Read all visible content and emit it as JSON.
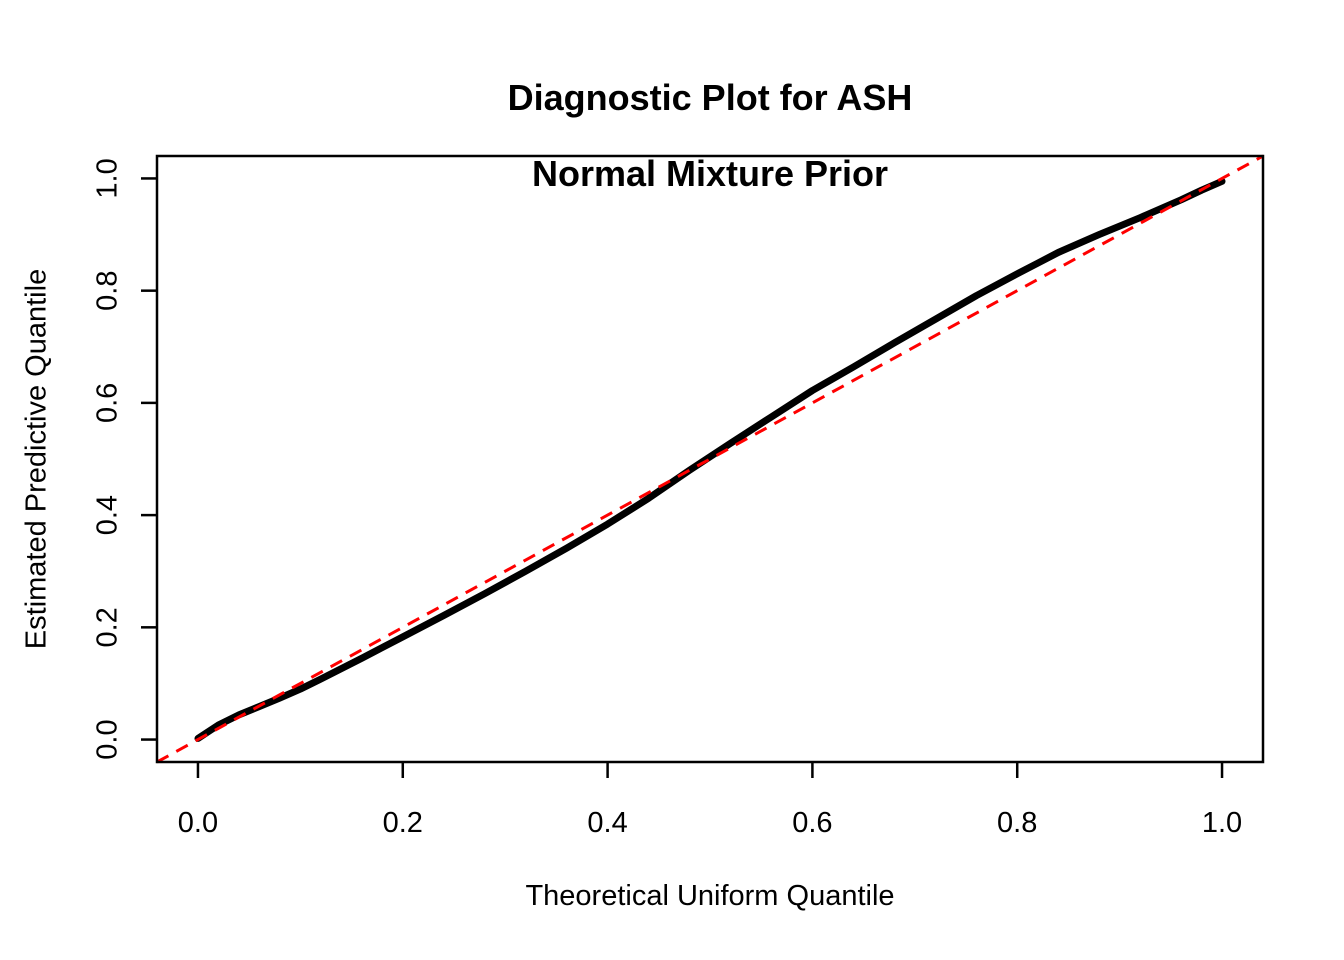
{
  "figure": {
    "title_line1": "Diagnostic Plot for ASH",
    "title_line2": "Normal Mixture Prior",
    "background_color": "#ffffff"
  },
  "chart_data": {
    "type": "line",
    "title": "Diagnostic Plot for ASH\nNormal Mixture Prior",
    "xlabel": "Theoretical Uniform Quantile",
    "ylabel": "Estimated Predictive Quantile",
    "xlim": [
      -0.04,
      1.04
    ],
    "ylim": [
      -0.04,
      1.04
    ],
    "grid": false,
    "legend": "none",
    "x_ticks": [
      0.0,
      0.2,
      0.4,
      0.6,
      0.8,
      1.0
    ],
    "x_tick_labels": [
      "0.0",
      "0.2",
      "0.4",
      "0.6",
      "0.8",
      "1.0"
    ],
    "y_ticks": [
      0.0,
      0.2,
      0.4,
      0.6,
      0.8,
      1.0
    ],
    "y_tick_labels": [
      "0.0",
      "0.2",
      "0.4",
      "0.6",
      "0.8",
      "1.0"
    ],
    "series": [
      {
        "name": "estimated-predictive-quantile-curve",
        "color": "#000000",
        "style": "solid",
        "stroke_width": 7,
        "points": [
          [
            0.0,
            0.002
          ],
          [
            0.02,
            0.026
          ],
          [
            0.04,
            0.044
          ],
          [
            0.06,
            0.059
          ],
          [
            0.08,
            0.074
          ],
          [
            0.1,
            0.09
          ],
          [
            0.12,
            0.108
          ],
          [
            0.16,
            0.145
          ],
          [
            0.2,
            0.183
          ],
          [
            0.24,
            0.221
          ],
          [
            0.28,
            0.26
          ],
          [
            0.32,
            0.3
          ],
          [
            0.36,
            0.341
          ],
          [
            0.4,
            0.384
          ],
          [
            0.44,
            0.43
          ],
          [
            0.48,
            0.48
          ],
          [
            0.52,
            0.528
          ],
          [
            0.56,
            0.575
          ],
          [
            0.6,
            0.622
          ],
          [
            0.64,
            0.664
          ],
          [
            0.68,
            0.707
          ],
          [
            0.72,
            0.749
          ],
          [
            0.76,
            0.791
          ],
          [
            0.8,
            0.83
          ],
          [
            0.82,
            0.849
          ],
          [
            0.84,
            0.868
          ],
          [
            0.88,
            0.9
          ],
          [
            0.92,
            0.93
          ],
          [
            0.96,
            0.962
          ],
          [
            0.98,
            0.979
          ],
          [
            1.0,
            0.995
          ]
        ]
      },
      {
        "name": "reference-line-y-equals-x",
        "color": "#FF0000",
        "style": "dashed",
        "stroke_width": 3,
        "points": [
          [
            -0.04,
            -0.04
          ],
          [
            1.04,
            1.04
          ]
        ]
      }
    ]
  }
}
